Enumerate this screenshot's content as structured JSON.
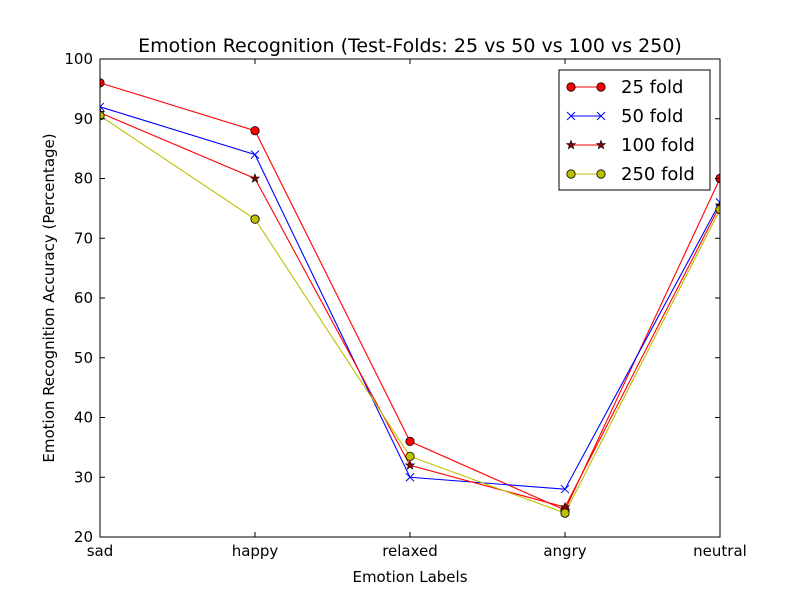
{
  "chart_data": {
    "type": "line",
    "title": "Emotion Recognition (Test-Folds: 25 vs 50 vs 100 vs 250)",
    "xlabel": "Emotion Labels",
    "ylabel": "Emotion Recognition Accuracy (Percentage)",
    "categories": [
      "sad",
      "happy",
      "relaxed",
      "angry",
      "neutral"
    ],
    "ylim": [
      20,
      100
    ],
    "yticks": [
      "20",
      "30",
      "40",
      "50",
      "60",
      "70",
      "80",
      "90",
      "100"
    ],
    "grid": false,
    "legend_position": "top-right",
    "series": [
      {
        "name": "25 fold",
        "values": [
          96,
          88,
          36,
          24.5,
          80
        ],
        "color": "#ff0000",
        "marker": "circle"
      },
      {
        "name": "50 fold",
        "values": [
          92,
          84,
          30,
          28,
          76
        ],
        "color": "#0000ff",
        "marker": "x"
      },
      {
        "name": "100 fold",
        "values": [
          91,
          80,
          32,
          25,
          75.5
        ],
        "color": "#ff0000",
        "marker_color": "#8b0000",
        "marker": "star"
      },
      {
        "name": "250 fold",
        "values": [
          90.5,
          73.2,
          33.5,
          24,
          74.8
        ],
        "color": "#bfbf00",
        "marker": "circle"
      }
    ]
  }
}
